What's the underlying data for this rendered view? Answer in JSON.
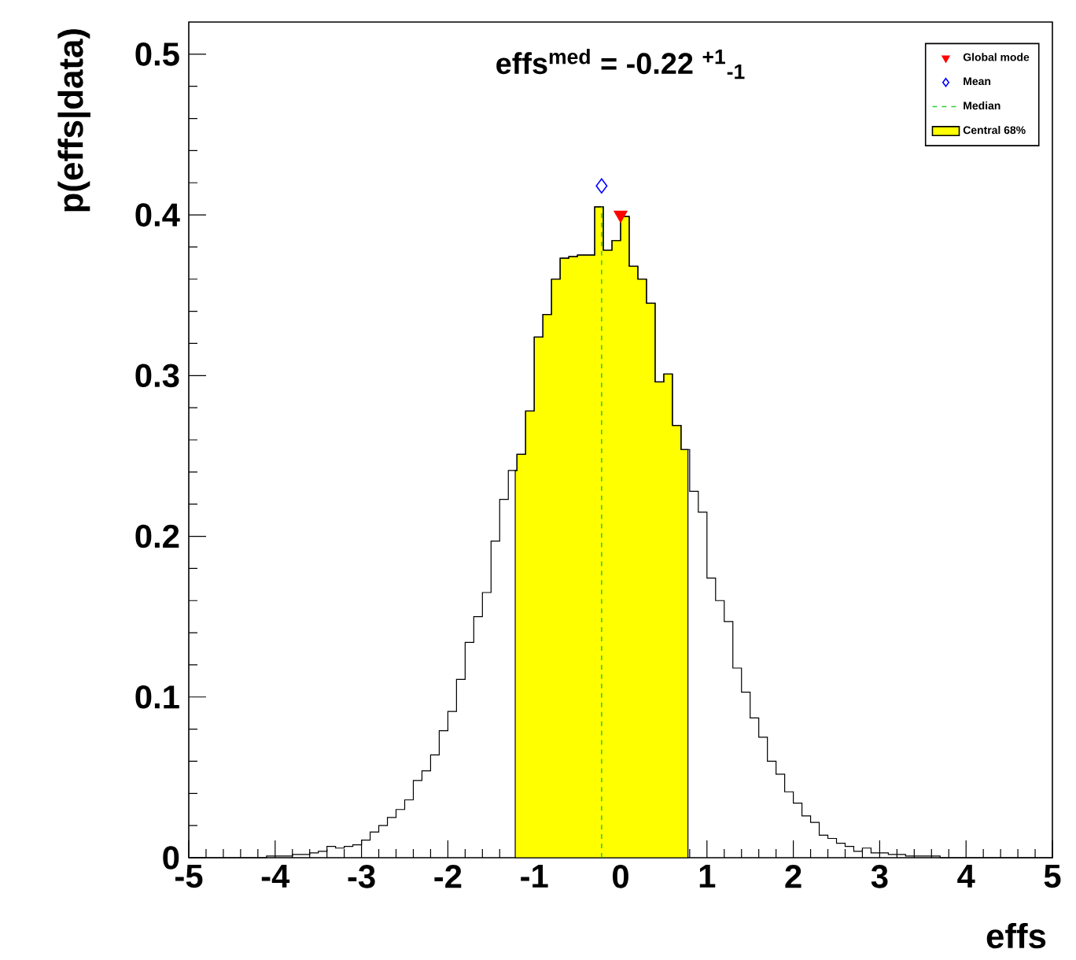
{
  "chart_data": {
    "type": "histogram",
    "title": "effs$^{med}$ = -0.22 $^{+1}$$_{-1}$",
    "xlabel": "effs",
    "ylabel": "p(effs|data)",
    "xlim": [
      -5,
      5
    ],
    "ylim": [
      0,
      0.52
    ],
    "xticks": [
      -5,
      -4,
      -3,
      -2,
      -1,
      0,
      1,
      2,
      3,
      4,
      5
    ],
    "yticks": [
      0,
      0.1,
      0.2,
      0.3,
      0.4,
      0.5
    ],
    "legend": "top right",
    "grid": false,
    "series": [
      {
        "color": "#000000",
        "bins": [
          -5.0,
          -4.9,
          -4.8,
          -4.7,
          -4.6,
          -4.5,
          -4.4,
          -4.3,
          -4.2,
          -4.1,
          -4.0,
          -3.9,
          -3.8,
          -3.7,
          -3.6,
          -3.5,
          -3.4,
          -3.3,
          -3.2,
          -3.1,
          -3.0,
          -2.9,
          -2.8,
          -2.7,
          -2.6,
          -2.5,
          -2.4,
          -2.3,
          -2.2,
          -2.1,
          -2.0,
          -1.9,
          -1.8,
          -1.7,
          -1.6,
          -1.5,
          -1.4,
          -1.3,
          -1.2,
          -1.1,
          -1.0,
          -0.9,
          -0.8,
          -0.7,
          -0.6,
          -0.5,
          -0.4,
          -0.3,
          -0.2,
          -0.1,
          0.0,
          0.1,
          0.2,
          0.3,
          0.4,
          0.5,
          0.6,
          0.7,
          0.8,
          0.9,
          1.0,
          1.1,
          1.2,
          1.3,
          1.4,
          1.5,
          1.6,
          1.7,
          1.8,
          1.9,
          2.0,
          2.1,
          2.2,
          2.3,
          2.4,
          2.5,
          2.6,
          2.7,
          2.8,
          2.9,
          3.0,
          3.1,
          3.2,
          3.3,
          3.4,
          3.5,
          3.6,
          3.7,
          3.8,
          3.9,
          4.0,
          4.1,
          4.2,
          4.3,
          4.4,
          4.5,
          4.6,
          4.7,
          4.8,
          4.9,
          5.0
        ],
        "values": [
          0,
          0,
          0,
          0,
          0,
          0,
          0,
          0,
          0,
          0.001,
          0.001,
          0.001,
          0.002,
          0.002,
          0.003,
          0.004,
          0.007,
          0.006,
          0.007,
          0.008,
          0.011,
          0.016,
          0.02,
          0.025,
          0.03,
          0.036,
          0.048,
          0.054,
          0.064,
          0.079,
          0.091,
          0.111,
          0.134,
          0.15,
          0.165,
          0.197,
          0.223,
          0.241,
          0.251,
          0.278,
          0.324,
          0.338,
          0.36,
          0.373,
          0.374,
          0.375,
          0.375,
          0.405,
          0.378,
          0.384,
          0.399,
          0.368,
          0.36,
          0.345,
          0.296,
          0.301,
          0.269,
          0.254,
          0.228,
          0.215,
          0.174,
          0.16,
          0.147,
          0.118,
          0.103,
          0.087,
          0.075,
          0.06,
          0.052,
          0.041,
          0.034,
          0.026,
          0.022,
          0.014,
          0.012,
          0.009,
          0.007,
          0.004,
          0.006,
          0.003,
          0.003,
          0.002,
          0.002,
          0.001,
          0.001,
          0.001,
          0.001,
          0,
          0,
          0,
          0,
          0,
          0,
          0,
          0,
          0,
          0,
          0,
          0,
          0
        ]
      },
      {
        "type": "scatter",
        "name": "Global mode",
        "color": "#ff0000",
        "marker": "triangle",
        "x": [
          0.0
        ],
        "values": [
          0.4
        ]
      },
      {
        "type": "scatter",
        "name": "Mean",
        "color": "#0000ff",
        "marker": "diamond",
        "x": [
          -0.22
        ],
        "values": [
          0.418
        ]
      }
    ],
    "ref_lines": [
      {
        "axis": "x",
        "value": -0.22,
        "label": "Median",
        "color": "#33cc33",
        "line_style": "dashed"
      }
    ],
    "bands": [
      {
        "axis": "x",
        "from": -1.22,
        "to": 0.78,
        "label": "Central 68%",
        "color": "#ffff00"
      }
    ]
  }
}
